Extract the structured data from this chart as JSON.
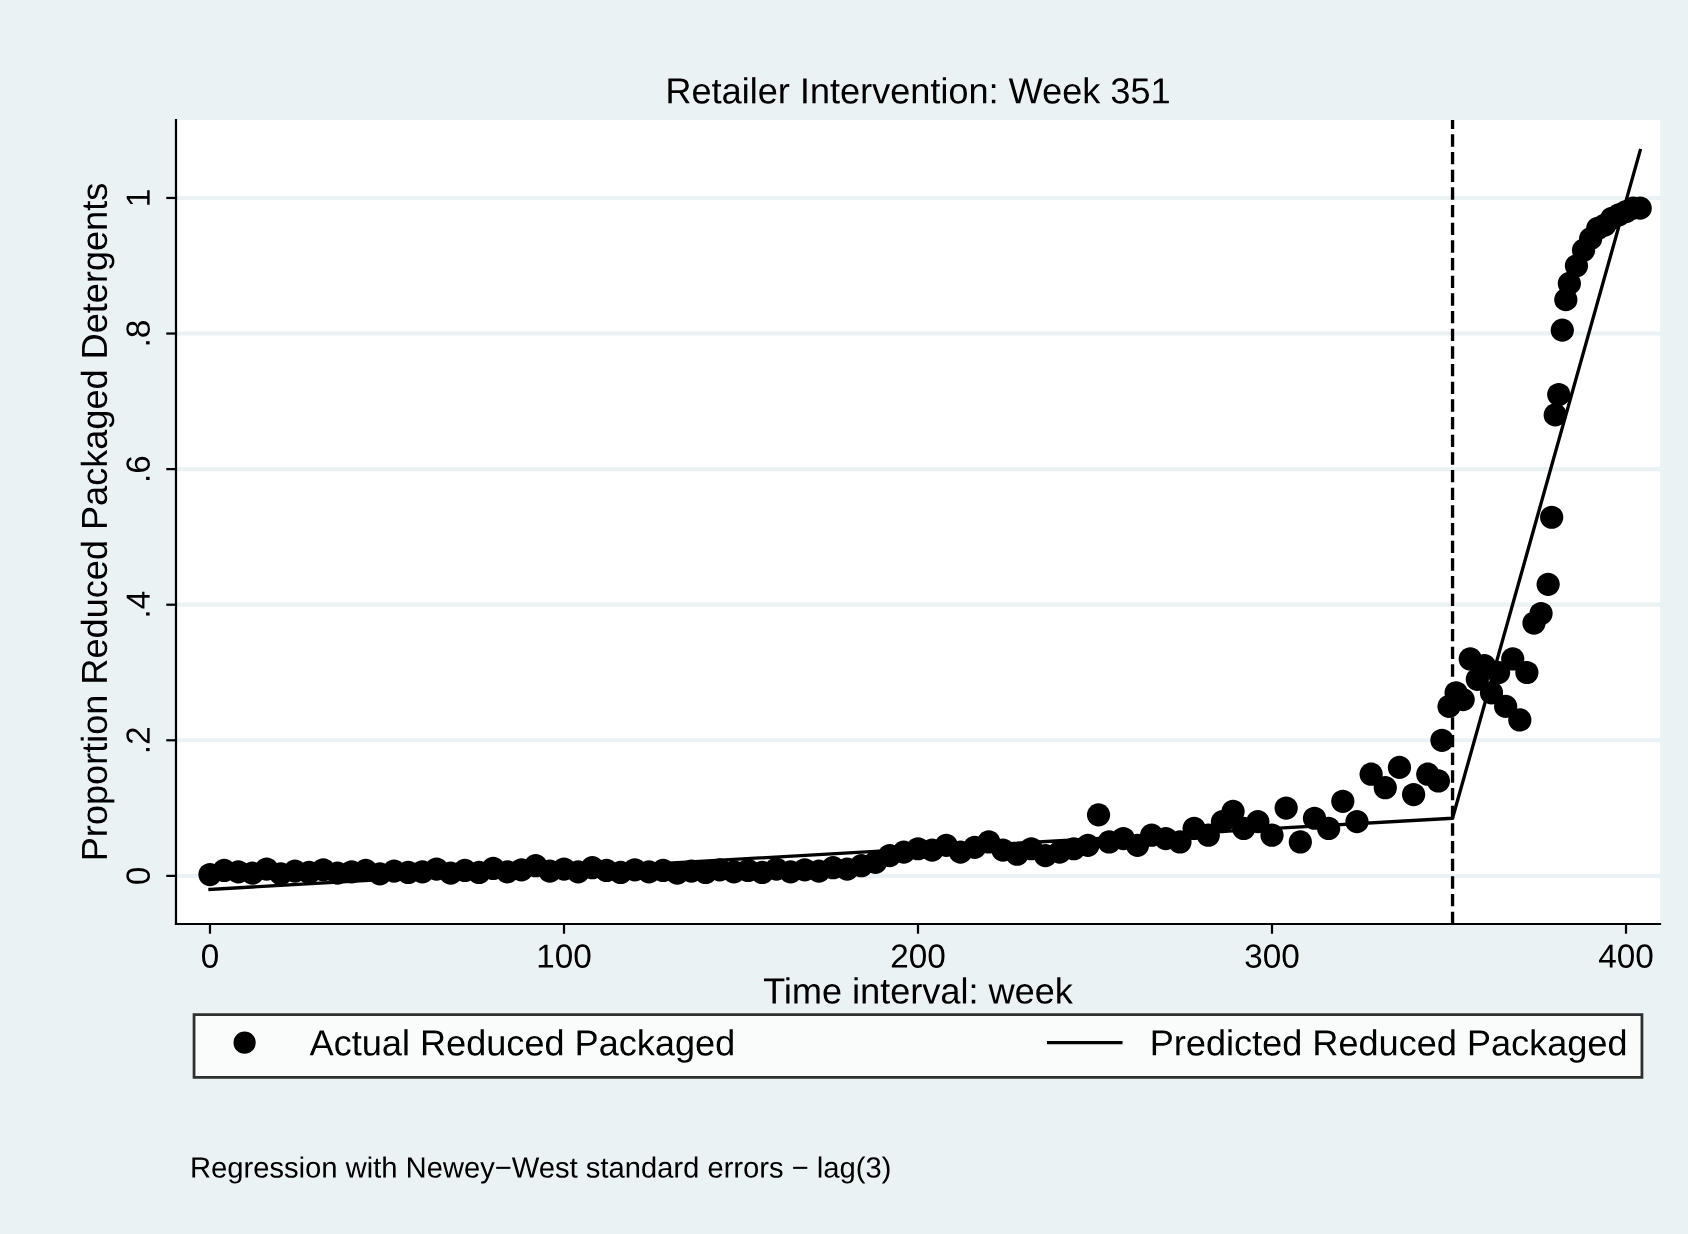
{
  "chart_data": {
    "type": "scatter",
    "title": "Retailer Intervention: Week 351",
    "xlabel": "Time interval: week",
    "ylabel": "Proportion Reduced Packaged Detergents",
    "xlim": [
      -9.6,
      409.6
    ],
    "xticks": [
      0,
      100,
      200,
      300,
      400
    ],
    "ylim": [
      -0.071,
      1.115
    ],
    "yticks": [
      0,
      {
        "value": 0.2,
        "label": ".2"
      },
      {
        "value": 0.4,
        "label": ".4"
      },
      {
        "value": 0.6,
        "label": ".6"
      },
      {
        "value": 0.8,
        "label": ".8"
      },
      1
    ],
    "grid": "y",
    "legend": "bottom",
    "marker": "circle",
    "ref_lines": [
      {
        "axis": "x",
        "value": 351,
        "line_style": "dashed",
        "color": "#000000"
      }
    ],
    "annotations": [
      "Regression with Newey−West standard errors − lag(3)"
    ],
    "series": [
      {
        "name": "Actual Reduced Packaged",
        "color": "#000000",
        "x": [
          0,
          4,
          8,
          12,
          16,
          20,
          24,
          28,
          32,
          36,
          40,
          44,
          48,
          52,
          56,
          60,
          64,
          68,
          72,
          76,
          80,
          84,
          88,
          92,
          96,
          100,
          104,
          108,
          112,
          116,
          120,
          124,
          128,
          132,
          136,
          140,
          144,
          148,
          152,
          156,
          160,
          164,
          168,
          172,
          176,
          180,
          184,
          188,
          192,
          196,
          200,
          204,
          208,
          212,
          216,
          220,
          224,
          228,
          232,
          236,
          240,
          244,
          248,
          251,
          254,
          258,
          262,
          266,
          270,
          274,
          278,
          282,
          286,
          289,
          292,
          296,
          300,
          304,
          308,
          312,
          316,
          320,
          324,
          328,
          332,
          336,
          340,
          344,
          347,
          348,
          350,
          352,
          354,
          356,
          358,
          360,
          362,
          364,
          366,
          368,
          370,
          372,
          374,
          376,
          378,
          379,
          380,
          381,
          382,
          383,
          384,
          386,
          388,
          390,
          392,
          394,
          396,
          398,
          400,
          402,
          404
        ],
        "values": [
          0.002,
          0.008,
          0.006,
          0.004,
          0.01,
          0.003,
          0.007,
          0.005,
          0.009,
          0.004,
          0.006,
          0.008,
          0.003,
          0.007,
          0.005,
          0.006,
          0.01,
          0.004,
          0.008,
          0.005,
          0.011,
          0.006,
          0.009,
          0.015,
          0.007,
          0.01,
          0.006,
          0.012,
          0.008,
          0.005,
          0.009,
          0.006,
          0.008,
          0.004,
          0.007,
          0.005,
          0.009,
          0.006,
          0.008,
          0.005,
          0.01,
          0.006,
          0.009,
          0.007,
          0.012,
          0.01,
          0.015,
          0.02,
          0.03,
          0.035,
          0.04,
          0.038,
          0.045,
          0.035,
          0.042,
          0.05,
          0.038,
          0.032,
          0.04,
          0.03,
          0.035,
          0.04,
          0.045,
          0.09,
          0.05,
          0.055,
          0.045,
          0.06,
          0.055,
          0.05,
          0.07,
          0.06,
          0.08,
          0.095,
          0.07,
          0.08,
          0.06,
          0.1,
          0.05,
          0.085,
          0.07,
          0.11,
          0.08,
          0.15,
          0.13,
          0.16,
          0.12,
          0.15,
          0.14,
          0.2,
          0.25,
          0.27,
          0.26,
          0.32,
          0.29,
          0.31,
          0.27,
          0.3,
          0.25,
          0.32,
          0.23,
          0.3,
          0.373,
          0.387,
          0.43,
          0.529,
          0.68,
          0.71,
          0.805,
          0.85,
          0.874,
          0.9,
          0.923,
          0.94,
          0.955,
          0.96,
          0.97,
          0.975,
          0.98,
          0.985,
          0.985
        ]
      },
      {
        "name": "Predicted Reduced Packaged",
        "type": "line",
        "color": "#000000",
        "marker": "none",
        "line_style": "solid",
        "x": [
          0,
          351,
          404
        ],
        "values": [
          -0.02,
          0.085,
          1.07
        ]
      }
    ]
  }
}
